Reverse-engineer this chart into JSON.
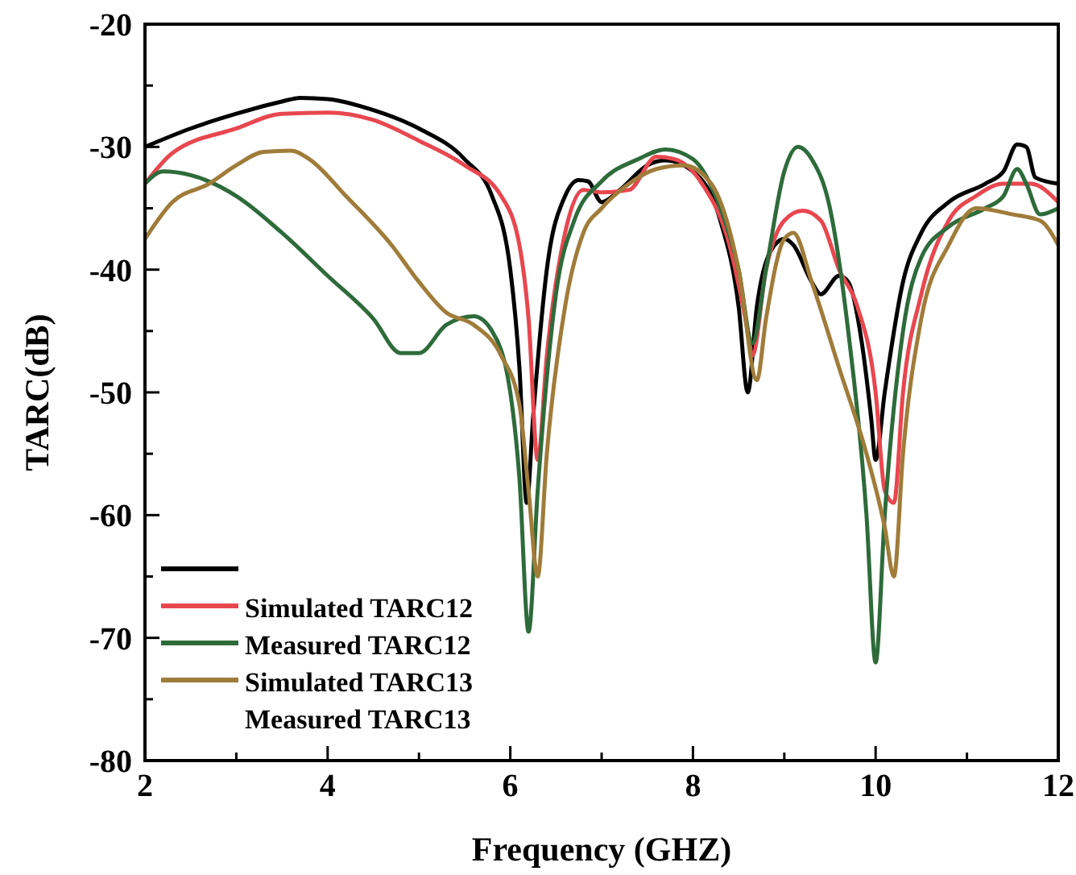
{
  "chart_data": {
    "type": "line",
    "xlabel": "Frequency (GHZ)",
    "ylabel": "TARC(dB)",
    "xlim": [
      2,
      12
    ],
    "ylim": [
      -80,
      -20
    ],
    "xticks": [
      2,
      {
        "value": 3,
        "label": null
      },
      4,
      {
        "value": 5,
        "label": null
      },
      6,
      {
        "value": 7,
        "label": null
      },
      8,
      {
        "value": 9,
        "label": null
      },
      10,
      {
        "value": 11,
        "label": null
      },
      12
    ],
    "yticks": [
      -80,
      {
        "value": -75,
        "label": null
      },
      -70,
      {
        "value": -65,
        "label": null
      },
      -60,
      {
        "value": -55,
        "label": null
      },
      -50,
      {
        "value": -45,
        "label": null
      },
      -40,
      {
        "value": -35,
        "label": null
      },
      -30,
      {
        "value": -25,
        "label": null
      },
      -20
    ],
    "grid": false,
    "legend": "bottom left",
    "marker": "none",
    "line_style": "solid",
    "annotations": [
      "Measured TARC13"
    ],
    "series": [
      {
        "color": "#000000",
        "x": [
          2,
          2.5,
          3,
          3.5,
          3.7,
          4,
          4.5,
          5,
          5.5,
          5.8,
          6.0,
          6.1,
          6.18,
          6.25,
          6.4,
          6.6,
          6.75,
          6.85,
          7.0,
          7.2,
          7.5,
          7.7,
          8.0,
          8.3,
          8.5,
          8.6,
          8.7,
          8.85,
          9.0,
          9.1,
          9.3,
          9.4,
          9.6,
          9.7,
          9.85,
          9.95,
          10.0,
          10.1,
          10.3,
          10.5,
          10.8,
          11.2,
          11.4,
          11.55,
          11.65,
          11.75,
          12
        ],
        "values": [
          -30,
          -28.5,
          -27.3,
          -26.3,
          -26,
          -26.1,
          -27,
          -28.5,
          -31,
          -34,
          -40,
          -48,
          -59,
          -52,
          -40,
          -34,
          -32.7,
          -32.8,
          -34.5,
          -33.5,
          -31.5,
          -31.1,
          -32,
          -36,
          -43,
          -50,
          -43,
          -38.5,
          -37.5,
          -38,
          -41,
          -42,
          -40.5,
          -41,
          -46,
          -52,
          -55.5,
          -50,
          -41,
          -37,
          -34.5,
          -33,
          -32,
          -29.8,
          -30,
          -32.5,
          -33
        ]
      },
      {
        "name": "Simulated TARC12",
        "color": "#e8474f",
        "x": [
          2,
          2.3,
          3,
          3.5,
          4,
          4.5,
          5,
          5.5,
          5.9,
          6.1,
          6.2,
          6.3,
          6.4,
          6.6,
          6.8,
          7.0,
          7.3,
          7.6,
          7.8,
          8.1,
          8.4,
          8.6,
          8.65,
          8.8,
          9.0,
          9.2,
          9.4,
          9.6,
          9.8,
          10.0,
          10.1,
          10.2,
          10.3,
          10.5,
          10.8,
          11.1,
          11.4,
          11.7,
          12
        ],
        "values": [
          -33,
          -30.5,
          -28.5,
          -27.3,
          -27.2,
          -27.8,
          -29.5,
          -31.5,
          -34,
          -38,
          -44,
          -55.5,
          -47,
          -37,
          -33.5,
          -33.7,
          -33.5,
          -30.8,
          -31,
          -33,
          -38,
          -45,
          -47,
          -40,
          -36,
          -35.2,
          -36,
          -40,
          -43,
          -50,
          -58,
          -59,
          -50,
          -42,
          -36,
          -34,
          -33,
          -33,
          -34.5
        ]
      },
      {
        "name": "Measured TARC12",
        "color": "#2e6b3a",
        "x": [
          2,
          2.2,
          2.5,
          3,
          3.5,
          4,
          4.5,
          4.8,
          5.0,
          5.3,
          5.6,
          5.8,
          6.0,
          6.1,
          6.2,
          6.3,
          6.5,
          6.7,
          7.0,
          7.4,
          7.7,
          8.0,
          8.3,
          8.5,
          8.65,
          8.8,
          9.0,
          9.15,
          9.3,
          9.5,
          9.7,
          9.9,
          10.0,
          10.1,
          10.3,
          10.5,
          10.8,
          11.2,
          11.4,
          11.55,
          11.65,
          11.8,
          12
        ],
        "values": [
          -33,
          -32,
          -32.3,
          -34,
          -37,
          -40.5,
          -44,
          -46.8,
          -46.8,
          -44.5,
          -43.8,
          -45,
          -50,
          -57,
          -69.5,
          -58,
          -42,
          -36,
          -32.8,
          -31,
          -30.2,
          -31,
          -35,
          -40,
          -46,
          -40,
          -32,
          -30,
          -31,
          -35,
          -45,
          -60,
          -72,
          -60,
          -45,
          -39,
          -36.5,
          -35,
          -34,
          -31.8,
          -33,
          -35.5,
          -35
        ]
      },
      {
        "name": "Simulated TARC13",
        "color": "#a07c3a",
        "x": [
          2,
          2.3,
          2.7,
          3,
          3.3,
          3.6,
          3.8,
          4.2,
          4.7,
          5,
          5.3,
          5.6,
          5.9,
          6.1,
          6.2,
          6.3,
          6.4,
          6.6,
          6.8,
          7.0,
          7.3,
          7.6,
          7.9,
          8.2,
          8.5,
          8.7,
          8.8,
          9.0,
          9.1,
          9.3,
          9.6,
          9.9,
          10.1,
          10.2,
          10.3,
          10.5,
          10.8,
          11.1,
          11.5,
          11.8,
          12
        ],
        "values": [
          -37.5,
          -34.5,
          -33,
          -31.5,
          -30.4,
          -30.3,
          -31,
          -34,
          -38,
          -41,
          -43.5,
          -44.5,
          -47,
          -51,
          -58,
          -65,
          -55,
          -43,
          -37,
          -35,
          -33,
          -31.8,
          -31.5,
          -33,
          -40,
          -49,
          -44,
          -37.5,
          -37,
          -41,
          -48,
          -55,
          -61,
          -65,
          -55,
          -44,
          -38,
          -35,
          -35.5,
          -36,
          -38
        ]
      }
    ]
  }
}
